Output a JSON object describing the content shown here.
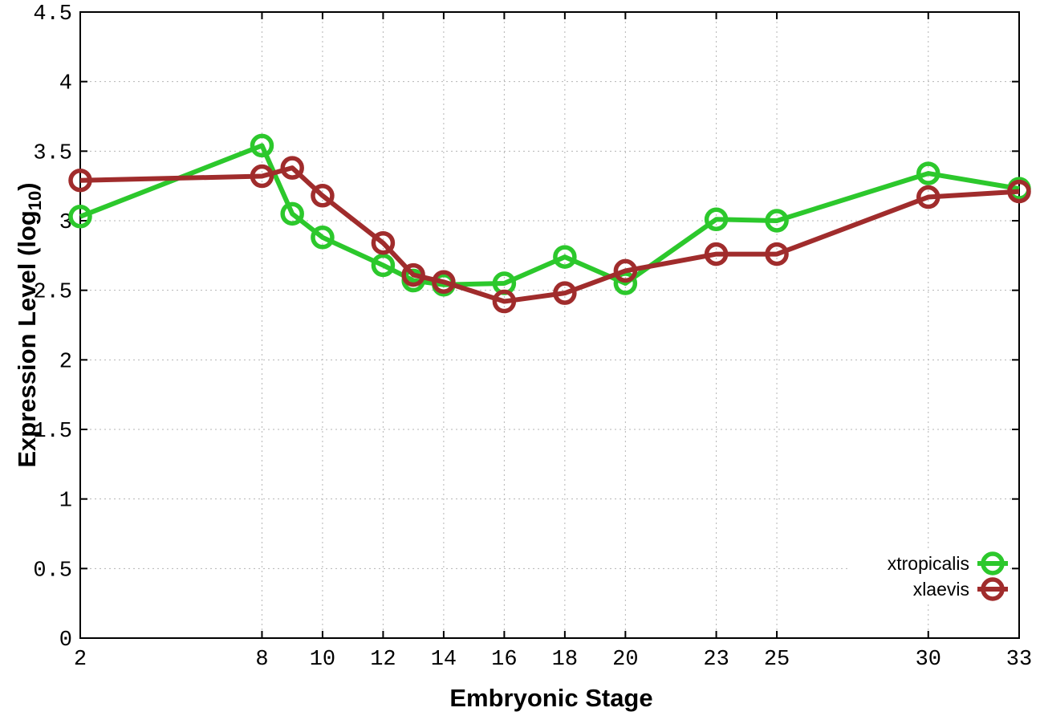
{
  "figure": {
    "background": "#ffffff",
    "axis_color": "#000000",
    "grid_color": "#b5b5b5",
    "text_color": "#000000"
  },
  "chart_data": {
    "type": "line",
    "title": "",
    "xlabel": "Embryonic Stage",
    "ylabel": "Expression Level (log10)",
    "ylabel_parts": {
      "main": "Expression Level (log",
      "sub": "10",
      "end": ")"
    },
    "xlim": [
      2,
      33
    ],
    "ylim": [
      0,
      4.5
    ],
    "grid": true,
    "grid_style": "dotted",
    "legend_position": "bottom-right",
    "x": [
      2,
      8,
      9,
      10,
      12,
      13,
      14,
      16,
      18,
      20,
      23,
      25,
      30,
      33
    ],
    "xticks": [
      2,
      8,
      10,
      12,
      14,
      16,
      18,
      20,
      23,
      25,
      30,
      33
    ],
    "xtick_labels": [
      "2",
      "8",
      "10",
      "12",
      "14",
      "16",
      "18",
      "20",
      "23",
      "25",
      "30",
      "33"
    ],
    "yticks": [
      0,
      0.5,
      1,
      1.5,
      2,
      2.5,
      3,
      3.5,
      4,
      4.5
    ],
    "ytick_labels": [
      "0",
      "0.5",
      "1",
      "1.5",
      "2",
      "2.5",
      "3",
      "3.5",
      "4",
      "4.5"
    ],
    "series": [
      {
        "name": "xtropicalis",
        "color": "#2cc82c",
        "marker": "circle-open",
        "values": [
          3.03,
          3.54,
          3.05,
          2.88,
          2.68,
          2.57,
          2.54,
          2.55,
          2.74,
          2.55,
          3.01,
          3.0,
          3.34,
          3.23
        ]
      },
      {
        "name": "xlaevis",
        "color": "#a02c2c",
        "marker": "circle-open",
        "values": [
          3.29,
          3.32,
          3.38,
          3.18,
          2.84,
          2.61,
          2.56,
          2.42,
          2.48,
          2.64,
          2.76,
          2.76,
          3.17,
          3.21
        ]
      }
    ]
  }
}
